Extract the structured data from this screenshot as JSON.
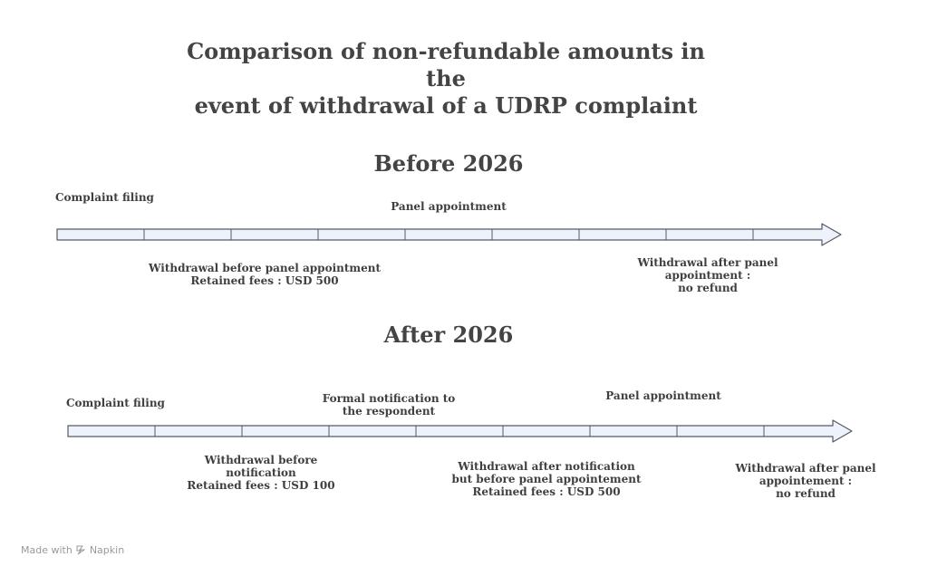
{
  "title_line1": "Comparison of non-refundable amounts in the",
  "title_line2": "event of withdrawal of a UDRP complaint",
  "before": {
    "heading": "Before 2026",
    "complaint_filing": "Complaint filing",
    "panel_appointment": "Panel appointment",
    "withdrawal_before_panel_l1": "Withdrawal before panel appointment",
    "withdrawal_before_panel_l2": "Retained fees : USD 500",
    "withdrawal_after_panel_l1": "Withdrawal after panel",
    "withdrawal_after_panel_l2": "appointment :",
    "withdrawal_after_panel_l3": "no refund"
  },
  "after": {
    "heading": "After 2026",
    "complaint_filing": "Complaint filing",
    "formal_notification_l1": "Formal notification to",
    "formal_notification_l2": "the respondent",
    "panel_appointment": "Panel appointment",
    "withdrawal_before_notif_l1": "Withdrawal before",
    "withdrawal_before_notif_l2": "notification",
    "withdrawal_before_notif_l3": "Retained fees : USD 100",
    "withdrawal_after_notif_l1": "Withdrawal after notification",
    "withdrawal_after_notif_l2": "but before panel appointement",
    "withdrawal_after_notif_l3": "Retained fees : USD 500",
    "withdrawal_after_panel_l1": "Withdrawal after panel",
    "withdrawal_after_panel_l2": "appointement :",
    "withdrawal_after_panel_l3": "no refund"
  },
  "footer": {
    "made_with": "Made with",
    "brand": "Napkin"
  },
  "colors": {
    "arrow_fill": "#eef2fb",
    "arrow_stroke": "#555a66",
    "text": "#3f3f3f"
  }
}
